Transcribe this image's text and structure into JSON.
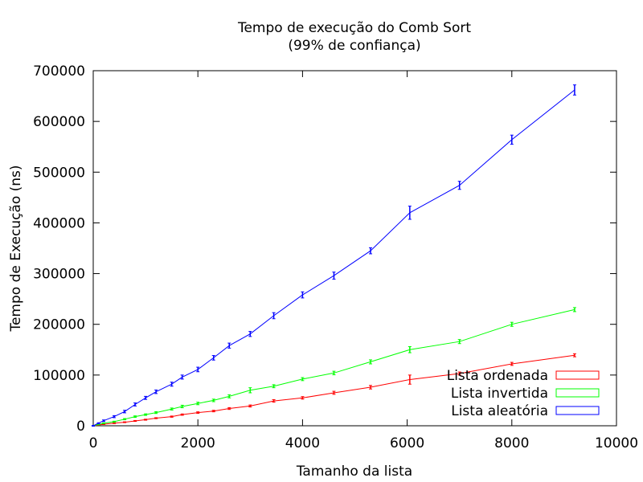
{
  "chart_data": {
    "type": "line",
    "title_line1": "Tempo de execução do Comb Sort",
    "title_line2": "(99% de confiança)",
    "xlabel": "Tamanho da lista",
    "ylabel": "Tempo de Execução (ns)",
    "xlim": [
      0,
      10000
    ],
    "ylim": [
      0,
      700000
    ],
    "x_ticks": [
      0,
      2000,
      4000,
      6000,
      8000,
      10000
    ],
    "y_ticks": [
      0,
      100000,
      200000,
      300000,
      400000,
      500000,
      600000,
      700000
    ],
    "grid": false,
    "legend_position": "bottom-right",
    "error_bars": true,
    "series": [
      {
        "name": "Lista ordenada",
        "color": "#ff0000",
        "x": [
          0,
          100,
          200,
          400,
          600,
          800,
          1000,
          1200,
          1500,
          1700,
          2000,
          2300,
          2600,
          3000,
          3450,
          4000,
          4600,
          5300,
          6050,
          7000,
          8000,
          9200
        ],
        "y": [
          0,
          1500,
          3000,
          5000,
          7000,
          9500,
          12000,
          15000,
          18000,
          22000,
          26000,
          29000,
          34000,
          39000,
          49000,
          55000,
          65000,
          76000,
          91000,
          103000,
          122000,
          139000
        ],
        "err": [
          500,
          500,
          600,
          700,
          800,
          900,
          1000,
          1000,
          1200,
          1300,
          1500,
          1500,
          1800,
          2000,
          2500,
          2500,
          3000,
          3500,
          9000,
          3000,
          3000,
          3000
        ]
      },
      {
        "name": "Lista invertida",
        "color": "#00ff00",
        "x": [
          0,
          100,
          200,
          400,
          600,
          800,
          1000,
          1200,
          1500,
          1700,
          2000,
          2300,
          2600,
          3000,
          3450,
          4000,
          4600,
          5300,
          6050,
          7000,
          8000,
          9200
        ],
        "y": [
          0,
          2500,
          5000,
          8000,
          13000,
          18000,
          22000,
          26000,
          33000,
          38000,
          44000,
          50000,
          58000,
          70000,
          78000,
          92000,
          104000,
          126000,
          150000,
          166000,
          200000,
          229000
        ],
        "err": [
          500,
          700,
          800,
          1000,
          1200,
          1500,
          1500,
          1800,
          2000,
          2500,
          2500,
          2500,
          3000,
          5000,
          3000,
          3000,
          3500,
          4000,
          6000,
          4000,
          4000,
          4000
        ]
      },
      {
        "name": "Lista aleatória",
        "color": "#0000ff",
        "x": [
          0,
          100,
          200,
          400,
          600,
          800,
          1000,
          1200,
          1500,
          1700,
          2000,
          2300,
          2600,
          3000,
          3450,
          4000,
          4600,
          5300,
          6050,
          7000,
          8000,
          9200
        ],
        "y": [
          0,
          5000,
          10000,
          18000,
          28000,
          42000,
          55000,
          67000,
          82000,
          96000,
          111000,
          134000,
          158000,
          181000,
          217000,
          258000,
          296000,
          345000,
          420000,
          474000,
          564000,
          662000
        ],
        "err": [
          800,
          1000,
          1500,
          2000,
          2500,
          3000,
          3000,
          3500,
          4000,
          4000,
          4500,
          4500,
          5000,
          5000,
          6000,
          6000,
          7000,
          6000,
          13000,
          8000,
          9000,
          10000
        ]
      }
    ]
  }
}
